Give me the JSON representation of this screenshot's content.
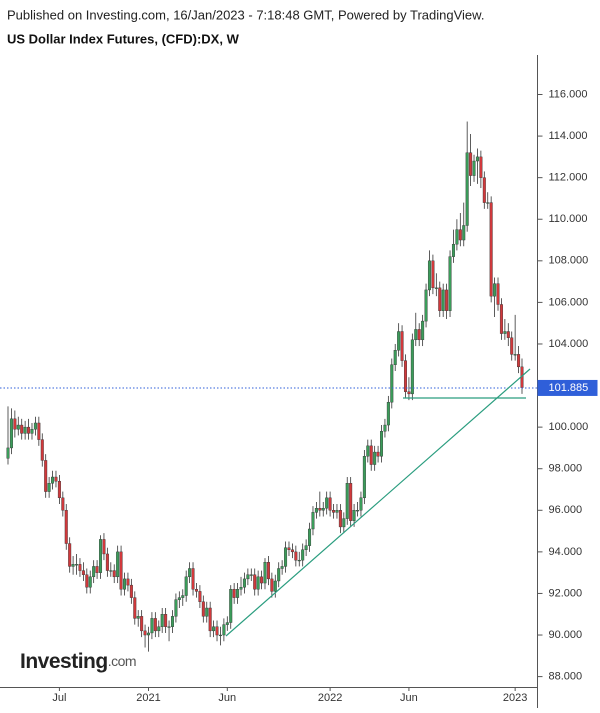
{
  "chart_data": {
    "type": "candlestick",
    "source": "Published on Investing.com, 16/Jan/2023 - 7:18:48 GMT, Powered by TradingView.",
    "title": "US Dollar Index Futures, (CFD):DX, W",
    "watermark": "Investing",
    "watermark_suffix": ".com",
    "up_color": "#3b9c5a",
    "down_color": "#d1393c",
    "last_price": 101.885,
    "last_price_color": "#2f5fd9",
    "ylim": [
      87.5,
      117.9
    ],
    "yticks": [
      {
        "value": 88,
        "label": "88.000"
      },
      {
        "value": 90,
        "label": "90.000"
      },
      {
        "value": 92,
        "label": "92.000"
      },
      {
        "value": 94,
        "label": "94.000"
      },
      {
        "value": 96,
        "label": "96.000"
      },
      {
        "value": 98,
        "label": "98.000"
      },
      {
        "value": 100,
        "label": "100.000"
      },
      {
        "value": 102,
        "label": "102.000"
      },
      {
        "value": 104,
        "label": "104.000"
      },
      {
        "value": 106,
        "label": "106.000"
      },
      {
        "value": 108,
        "label": "108.000"
      },
      {
        "value": 110,
        "label": "110.000"
      },
      {
        "value": 112,
        "label": "112.000"
      },
      {
        "value": 114,
        "label": "114.000"
      },
      {
        "value": 116,
        "label": "116.000"
      }
    ],
    "categories": [
      null,
      null,
      null,
      null,
      null,
      null,
      null,
      null,
      null,
      null,
      null,
      null,
      null,
      null,
      null,
      "Jul",
      null,
      null,
      null,
      null,
      null,
      null,
      null,
      null,
      null,
      null,
      null,
      null,
      null,
      null,
      null,
      null,
      null,
      null,
      null,
      null,
      null,
      null,
      null,
      null,
      null,
      "2021",
      null,
      null,
      null,
      null,
      null,
      null,
      null,
      null,
      null,
      null,
      null,
      null,
      null,
      null,
      null,
      null,
      null,
      null,
      null,
      null,
      null,
      null,
      "Jun",
      null,
      null,
      null,
      null,
      null,
      null,
      null,
      null,
      null,
      null,
      null,
      null,
      null,
      null,
      null,
      null,
      null,
      null,
      null,
      null,
      null,
      null,
      null,
      null,
      null,
      null,
      null,
      null,
      null,
      "2022",
      null,
      null,
      null,
      null,
      null,
      null,
      null,
      null,
      null,
      null,
      null,
      null,
      null,
      null,
      null,
      null,
      null,
      null,
      null,
      null,
      null,
      null,
      "Jun",
      null,
      null,
      null,
      null,
      null,
      null,
      null,
      null,
      null,
      null,
      null,
      null,
      null,
      null,
      null,
      null,
      null,
      null,
      null,
      null,
      null,
      null,
      null,
      null,
      null,
      null,
      null,
      null,
      null,
      null,
      "2023",
      null,
      null
    ],
    "values": [
      [
        98.5,
        101.0,
        98.2,
        99.0
      ],
      [
        99.0,
        100.9,
        98.7,
        100.4
      ],
      [
        100.4,
        100.8,
        99.5,
        99.9
      ],
      [
        99.9,
        100.5,
        99.6,
        100.1
      ],
      [
        100.1,
        100.4,
        99.4,
        99.7
      ],
      [
        99.7,
        100.3,
        99.4,
        100.0
      ],
      [
        100.0,
        100.4,
        99.4,
        99.7
      ],
      [
        99.7,
        100.2,
        99.4,
        99.9
      ],
      [
        99.9,
        100.5,
        99.6,
        100.2
      ],
      [
        100.2,
        100.5,
        99.1,
        99.4
      ],
      [
        99.4,
        99.7,
        98.1,
        98.4
      ],
      [
        98.4,
        98.7,
        96.6,
        96.9
      ],
      [
        96.9,
        97.6,
        96.6,
        97.3
      ],
      [
        97.3,
        97.9,
        97.0,
        97.6
      ],
      [
        97.6,
        97.9,
        97.1,
        97.4
      ],
      [
        97.4,
        97.7,
        96.3,
        96.6
      ],
      [
        96.6,
        96.9,
        95.7,
        96.0
      ],
      [
        96.0,
        96.3,
        94.1,
        94.4
      ],
      [
        94.4,
        94.7,
        93.0,
        93.3
      ],
      [
        93.3,
        93.8,
        92.9,
        93.4
      ],
      [
        93.4,
        93.9,
        92.9,
        93.4
      ],
      [
        93.4,
        93.7,
        92.8,
        93.1
      ],
      [
        93.1,
        93.5,
        92.6,
        92.9
      ],
      [
        92.9,
        93.2,
        92.0,
        92.3
      ],
      [
        92.3,
        93.1,
        92.0,
        92.8
      ],
      [
        92.8,
        93.6,
        92.5,
        93.3
      ],
      [
        93.3,
        93.6,
        92.7,
        93.0
      ],
      [
        93.0,
        94.8,
        92.7,
        94.6
      ],
      [
        94.6,
        94.9,
        93.6,
        93.9
      ],
      [
        93.9,
        94.2,
        92.8,
        93.1
      ],
      [
        93.1,
        93.5,
        92.8,
        93.1
      ],
      [
        93.1,
        93.4,
        92.5,
        92.8
      ],
      [
        92.8,
        94.3,
        92.5,
        94.0
      ],
      [
        94.0,
        94.3,
        91.9,
        92.2
      ],
      [
        92.2,
        93.0,
        91.9,
        92.7
      ],
      [
        92.7,
        93.0,
        92.1,
        92.4
      ],
      [
        92.4,
        92.7,
        91.5,
        91.8
      ],
      [
        91.8,
        92.1,
        90.5,
        90.8
      ],
      [
        90.8,
        91.2,
        90.4,
        90.9
      ],
      [
        90.9,
        91.2,
        89.9,
        90.2
      ],
      [
        90.2,
        90.5,
        89.4,
        90.0
      ],
      [
        90.0,
        90.4,
        89.2,
        90.1
      ],
      [
        90.1,
        91.1,
        89.8,
        90.8
      ],
      [
        90.8,
        91.1,
        89.9,
        90.2
      ],
      [
        90.2,
        90.7,
        89.9,
        90.4
      ],
      [
        90.4,
        91.3,
        90.1,
        91.0
      ],
      [
        91.0,
        91.3,
        90.1,
        90.4
      ],
      [
        90.4,
        90.7,
        89.7,
        90.4
      ],
      [
        90.4,
        91.2,
        90.1,
        90.9
      ],
      [
        90.9,
        92.0,
        90.6,
        91.7
      ],
      [
        91.7,
        92.1,
        91.3,
        91.8
      ],
      [
        91.8,
        92.2,
        91.4,
        91.9
      ],
      [
        91.9,
        93.1,
        91.6,
        92.8
      ],
      [
        92.8,
        93.5,
        92.5,
        93.2
      ],
      [
        93.2,
        93.5,
        91.9,
        92.2
      ],
      [
        92.2,
        92.5,
        91.8,
        92.1
      ],
      [
        92.1,
        92.4,
        91.3,
        91.6
      ],
      [
        91.6,
        91.9,
        90.6,
        90.9
      ],
      [
        90.9,
        91.6,
        90.6,
        91.3
      ],
      [
        91.3,
        91.6,
        89.9,
        90.2
      ],
      [
        90.2,
        90.7,
        89.9,
        90.4
      ],
      [
        90.4,
        90.7,
        89.7,
        90.0
      ],
      [
        90.0,
        90.4,
        89.5,
        90.0
      ],
      [
        90.0,
        90.8,
        89.7,
        90.5
      ],
      [
        90.5,
        90.9,
        90.2,
        90.6
      ],
      [
        90.6,
        92.4,
        90.3,
        92.2
      ],
      [
        92.2,
        92.5,
        91.5,
        91.8
      ],
      [
        91.8,
        92.5,
        91.5,
        92.2
      ],
      [
        92.2,
        92.8,
        91.9,
        92.3
      ],
      [
        92.3,
        93.0,
        92.0,
        92.7
      ],
      [
        92.7,
        93.2,
        92.4,
        92.9
      ],
      [
        92.9,
        93.2,
        92.6,
        92.9
      ],
      [
        92.9,
        93.2,
        91.9,
        92.2
      ],
      [
        92.2,
        93.1,
        91.9,
        92.8
      ],
      [
        92.8,
        93.1,
        92.2,
        92.5
      ],
      [
        92.5,
        93.7,
        92.2,
        93.5
      ],
      [
        93.5,
        93.8,
        92.4,
        92.7
      ],
      [
        92.7,
        93.0,
        91.8,
        92.1
      ],
      [
        92.1,
        92.9,
        91.8,
        92.6
      ],
      [
        92.6,
        93.5,
        92.3,
        93.2
      ],
      [
        93.2,
        93.6,
        92.9,
        93.3
      ],
      [
        93.3,
        94.5,
        93.0,
        94.2
      ],
      [
        94.2,
        94.5,
        93.8,
        94.1
      ],
      [
        94.1,
        94.4,
        93.7,
        94.0
      ],
      [
        94.0,
        94.3,
        93.3,
        93.6
      ],
      [
        93.6,
        94.0,
        93.3,
        93.6
      ],
      [
        93.6,
        94.4,
        93.3,
        94.1
      ],
      [
        94.1,
        94.6,
        93.8,
        94.3
      ],
      [
        94.3,
        95.4,
        94.0,
        95.1
      ],
      [
        95.1,
        96.2,
        94.8,
        95.9
      ],
      [
        95.9,
        96.4,
        95.6,
        96.1
      ],
      [
        96.1,
        96.9,
        95.7,
        96.0
      ],
      [
        96.0,
        96.4,
        95.7,
        96.1
      ],
      [
        96.1,
        96.9,
        95.8,
        96.6
      ],
      [
        96.6,
        96.9,
        95.7,
        96.0
      ],
      [
        96.0,
        96.3,
        95.6,
        95.9
      ],
      [
        95.9,
        96.3,
        95.6,
        96.0
      ],
      [
        96.0,
        96.3,
        94.9,
        95.2
      ],
      [
        95.2,
        95.9,
        94.9,
        95.6
      ],
      [
        95.6,
        97.6,
        95.3,
        97.3
      ],
      [
        97.3,
        97.6,
        95.2,
        95.5
      ],
      [
        95.5,
        96.3,
        95.2,
        96.0
      ],
      [
        96.0,
        96.4,
        95.7,
        96.0
      ],
      [
        96.0,
        96.9,
        95.7,
        96.6
      ],
      [
        96.6,
        98.9,
        96.3,
        98.6
      ],
      [
        98.6,
        99.4,
        98.3,
        99.1
      ],
      [
        99.1,
        99.4,
        97.9,
        98.2
      ],
      [
        98.2,
        99.1,
        97.9,
        98.8
      ],
      [
        98.8,
        99.1,
        98.3,
        98.6
      ],
      [
        98.6,
        100.1,
        98.3,
        99.8
      ],
      [
        99.8,
        100.4,
        99.5,
        100.1
      ],
      [
        100.1,
        101.5,
        99.8,
        101.2
      ],
      [
        101.2,
        103.3,
        100.9,
        103.0
      ],
      [
        103.0,
        104.0,
        102.7,
        103.7
      ],
      [
        103.7,
        105.0,
        103.4,
        104.6
      ],
      [
        104.6,
        104.9,
        102.9,
        103.2
      ],
      [
        103.2,
        103.5,
        101.4,
        101.7
      ],
      [
        101.7,
        102.4,
        101.3,
        101.6
      ],
      [
        101.6,
        104.5,
        101.3,
        104.2
      ],
      [
        104.2,
        105.5,
        103.9,
        104.7
      ],
      [
        104.7,
        105.0,
        103.9,
        104.2
      ],
      [
        104.2,
        105.4,
        103.9,
        105.1
      ],
      [
        105.1,
        106.9,
        104.8,
        106.6
      ],
      [
        106.6,
        108.5,
        106.3,
        108.0
      ],
      [
        108.0,
        108.3,
        106.4,
        106.7
      ],
      [
        106.7,
        107.4,
        106.3,
        106.7
      ],
      [
        106.7,
        107.0,
        105.3,
        105.6
      ],
      [
        105.6,
        106.9,
        105.3,
        106.6
      ],
      [
        106.6,
        106.9,
        105.2,
        105.6
      ],
      [
        105.6,
        108.5,
        105.3,
        108.2
      ],
      [
        108.2,
        109.5,
        107.9,
        108.8
      ],
      [
        108.8,
        110.0,
        108.5,
        109.5
      ],
      [
        109.5,
        110.3,
        108.7,
        109.0
      ],
      [
        109.0,
        110.8,
        108.7,
        109.7
      ],
      [
        109.7,
        114.7,
        109.4,
        113.2
      ],
      [
        113.2,
        114.1,
        111.6,
        112.1
      ],
      [
        112.1,
        113.1,
        111.8,
        112.8
      ],
      [
        112.8,
        113.4,
        111.7,
        113.0
      ],
      [
        113.0,
        113.3,
        111.5,
        112.0
      ],
      [
        112.0,
        112.3,
        110.5,
        110.8
      ],
      [
        110.8,
        111.3,
        110.5,
        110.8
      ],
      [
        110.8,
        111.1,
        106.0,
        106.3
      ],
      [
        106.3,
        107.2,
        105.3,
        106.9
      ],
      [
        106.9,
        107.2,
        105.6,
        105.9
      ],
      [
        105.9,
        106.2,
        104.2,
        104.5
      ],
      [
        104.5,
        105.2,
        104.2,
        104.6
      ],
      [
        104.6,
        105.0,
        103.9,
        104.3
      ],
      [
        104.3,
        104.6,
        103.2,
        103.5
      ],
      [
        103.5,
        105.4,
        103.2,
        103.5
      ],
      [
        103.5,
        103.9,
        102.6,
        102.9
      ],
      [
        102.9,
        103.3,
        101.6,
        101.9
      ]
    ]
  }
}
